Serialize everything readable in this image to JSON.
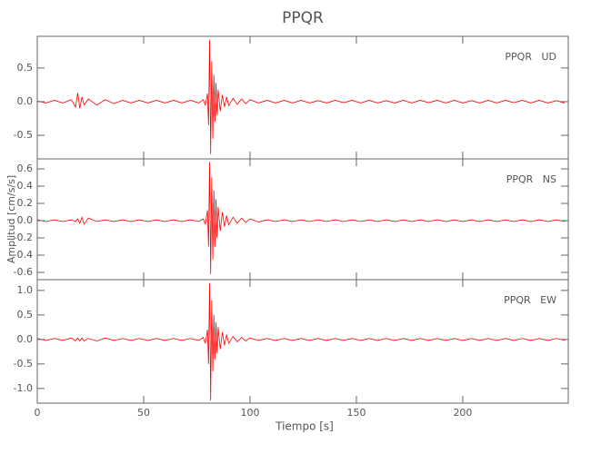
{
  "chart_data": [
    {
      "type": "line",
      "title": "PPQR",
      "label": "PPQR   UD",
      "color": "#ff0000",
      "x": [
        0,
        4,
        8,
        12,
        16,
        18,
        19,
        20,
        21,
        22,
        24,
        28,
        32,
        36,
        40,
        44,
        48,
        52,
        56,
        60,
        64,
        68,
        72,
        76,
        78,
        79,
        80,
        80.5,
        81,
        81.5,
        82,
        82.5,
        83,
        83.5,
        84,
        84.5,
        85,
        86,
        87,
        88,
        89,
        90,
        92,
        94,
        96,
        98,
        100,
        104,
        108,
        112,
        116,
        120,
        124,
        128,
        132,
        136,
        140,
        144,
        148,
        152,
        156,
        160,
        164,
        168,
        172,
        176,
        180,
        184,
        188,
        192,
        196,
        200,
        204,
        208,
        212,
        216,
        220,
        224,
        228,
        232,
        236,
        240,
        244,
        248
      ],
      "values": [
        0.01,
        -0.02,
        0.02,
        -0.02,
        0.03,
        -0.08,
        0.13,
        -0.1,
        0.07,
        -0.05,
        0.04,
        -0.05,
        0.03,
        -0.03,
        0.02,
        -0.02,
        0.02,
        -0.02,
        0.02,
        -0.02,
        0.02,
        -0.02,
        0.02,
        -0.02,
        0.03,
        -0.05,
        0.12,
        -0.35,
        0.92,
        -0.78,
        0.6,
        -0.55,
        0.4,
        -0.3,
        0.28,
        -0.2,
        0.18,
        -0.14,
        0.1,
        -0.08,
        0.07,
        -0.06,
        0.05,
        -0.04,
        0.04,
        -0.03,
        0.03,
        -0.02,
        0.02,
        -0.02,
        0.02,
        -0.02,
        0.02,
        -0.02,
        0.015,
        -0.02,
        0.02,
        -0.015,
        0.02,
        -0.02,
        0.02,
        -0.02,
        0.015,
        -0.02,
        0.02,
        -0.02,
        0.02,
        -0.015,
        0.02,
        -0.02,
        0.02,
        -0.02,
        0.015,
        -0.02,
        0.02,
        -0.02,
        0.02,
        -0.015,
        0.02,
        -0.02,
        0.02,
        -0.02,
        0.015,
        -0.02
      ],
      "xlim": [
        0,
        249.6
      ],
      "xticks": [
        0,
        50,
        100,
        150,
        200
      ],
      "ylim": [
        -0.85,
        0.97
      ],
      "yticks": [
        -0.5,
        {
          "value": 0,
          "label": "0.0"
        },
        0.5
      ]
    },
    {
      "type": "line",
      "label": "PPQR   NS",
      "ylabel": "Amplitud [cm/s/s]",
      "color": "#ff0000",
      "x": [
        0,
        4,
        8,
        12,
        16,
        18,
        19,
        20,
        21,
        22,
        24,
        28,
        32,
        36,
        40,
        44,
        48,
        52,
        56,
        60,
        64,
        68,
        72,
        76,
        78,
        79,
        80,
        80.5,
        81,
        81.5,
        82,
        82.5,
        83,
        83.5,
        84,
        84.5,
        85,
        86,
        87,
        88,
        89,
        90,
        92,
        94,
        96,
        98,
        100,
        104,
        108,
        112,
        116,
        120,
        124,
        128,
        132,
        136,
        140,
        144,
        148,
        152,
        156,
        160,
        164,
        168,
        172,
        176,
        180,
        184,
        188,
        192,
        196,
        200,
        204,
        208,
        212,
        216,
        220,
        224,
        228,
        232,
        236,
        240,
        244,
        248
      ],
      "values": [
        0.01,
        -0.01,
        0.01,
        -0.01,
        0.01,
        -0.01,
        0.02,
        -0.03,
        0.04,
        -0.04,
        0.03,
        -0.01,
        0.01,
        -0.01,
        0.01,
        -0.01,
        0.01,
        -0.01,
        0.01,
        -0.01,
        0.01,
        -0.01,
        0.01,
        -0.01,
        0.02,
        -0.04,
        0.12,
        -0.3,
        0.68,
        -0.62,
        0.5,
        -0.45,
        0.35,
        -0.3,
        0.25,
        -0.2,
        0.16,
        -0.12,
        0.1,
        -0.07,
        0.06,
        -0.05,
        0.04,
        -0.03,
        0.03,
        -0.02,
        0.02,
        -0.015,
        0.01,
        -0.01,
        0.01,
        -0.01,
        0.01,
        -0.01,
        0.01,
        -0.01,
        0.01,
        -0.01,
        0.01,
        -0.01,
        0.01,
        -0.01,
        0.01,
        -0.01,
        0.01,
        -0.01,
        0.01,
        -0.01,
        0.01,
        -0.01,
        0.01,
        -0.01,
        0.01,
        -0.01,
        0.01,
        -0.01,
        0.01,
        -0.01,
        0.01,
        -0.01,
        0.01,
        -0.01,
        0.01,
        -0.01
      ],
      "xlim": [
        0,
        249.6
      ],
      "xticks": [
        0,
        50,
        100,
        150,
        200
      ],
      "ylim": [
        -0.684,
        0.716
      ],
      "yticks": [
        -0.6,
        -0.4,
        -0.2,
        {
          "value": 0,
          "label": "0.0"
        },
        0.2,
        0.4,
        0.6
      ]
    },
    {
      "type": "line",
      "label": "PPQR   EW",
      "xlabel": "Tiempo [s]",
      "color": "#ff0000",
      "x": [
        0,
        4,
        8,
        12,
        16,
        18,
        19,
        20,
        21,
        22,
        24,
        28,
        32,
        36,
        40,
        44,
        48,
        52,
        56,
        60,
        64,
        68,
        72,
        76,
        78,
        79,
        80,
        80.5,
        81,
        81.5,
        82,
        82.5,
        83,
        83.5,
        84,
        84.5,
        85,
        86,
        87,
        88,
        89,
        90,
        92,
        94,
        96,
        98,
        100,
        104,
        108,
        112,
        116,
        120,
        124,
        128,
        132,
        136,
        140,
        144,
        148,
        152,
        156,
        160,
        164,
        168,
        172,
        176,
        180,
        184,
        188,
        192,
        196,
        200,
        204,
        208,
        212,
        216,
        220,
        224,
        228,
        232,
        236,
        240,
        244,
        248
      ],
      "values": [
        0.02,
        -0.02,
        0.02,
        -0.02,
        0.03,
        -0.03,
        0.03,
        -0.03,
        0.03,
        -0.03,
        0.02,
        -0.03,
        0.03,
        -0.02,
        0.02,
        -0.02,
        0.02,
        -0.02,
        0.02,
        -0.02,
        0.02,
        -0.02,
        0.02,
        -0.02,
        0.04,
        -0.08,
        0.2,
        -0.5,
        1.15,
        -1.25,
        0.8,
        -0.65,
        0.5,
        -0.4,
        0.35,
        -0.28,
        0.25,
        -0.2,
        0.15,
        -0.12,
        0.1,
        -0.08,
        0.06,
        -0.05,
        0.04,
        -0.03,
        0.03,
        -0.02,
        0.02,
        -0.02,
        0.02,
        -0.02,
        0.02,
        -0.02,
        0.02,
        -0.02,
        0.02,
        -0.02,
        0.02,
        -0.02,
        0.02,
        -0.02,
        0.02,
        -0.02,
        0.02,
        -0.02,
        0.02,
        -0.02,
        0.02,
        -0.02,
        0.02,
        -0.02,
        0.02,
        -0.02,
        0.02,
        -0.02,
        0.02,
        -0.02,
        0.02,
        -0.02,
        0.02,
        -0.02,
        0.02,
        -0.02
      ],
      "xlim": [
        0,
        249.6
      ],
      "xticks": [
        0,
        50,
        100,
        150,
        200
      ],
      "ylim": [
        -1.3,
        1.22
      ],
      "yticks": [
        {
          "value": -1,
          "label": "-1.0"
        },
        -0.5,
        {
          "value": 0,
          "label": "0.0"
        },
        0.5,
        {
          "value": 1,
          "label": "1.0"
        }
      ]
    }
  ]
}
